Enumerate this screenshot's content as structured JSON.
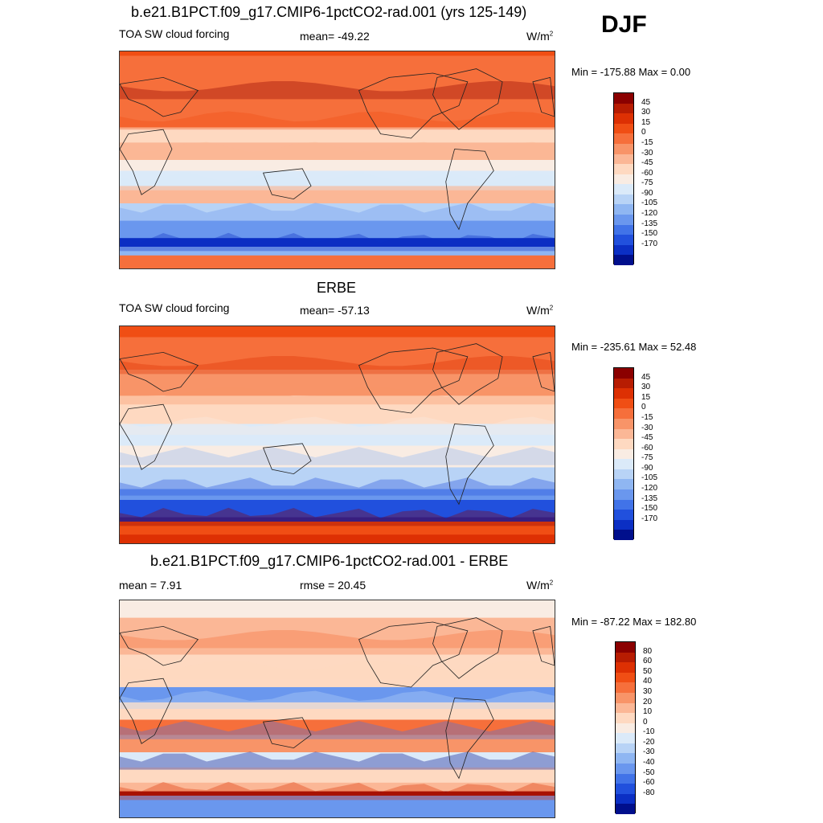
{
  "season": "DJF",
  "panels": [
    {
      "title": "b.e21.B1PCT.f09_g17.CMIP6-1pctCO2-rad.001 (yrs 125-149)",
      "left_label": "TOA SW cloud forcing",
      "center_label": "mean= -49.22",
      "units": "W/m",
      "units_sup": "2",
      "minmax": "Min = -175.88 Max =   0.00"
    },
    {
      "title": "ERBE",
      "left_label": "TOA SW cloud forcing",
      "center_label": "mean= -57.13",
      "units": "W/m",
      "units_sup": "2",
      "minmax": "Min = -235.61 Max =  52.48"
    },
    {
      "title": "b.e21.B1PCT.f09_g17.CMIP6-1pctCO2-rad.001 - ERBE",
      "left_label": "mean =   7.91",
      "center_label": "rmse =  20.45",
      "units": "W/m",
      "units_sup": "2",
      "minmax": "Min = -87.22 Max = 182.80"
    }
  ],
  "chart_data": [
    {
      "type": "heatmap",
      "title": "b.e21.B1PCT.f09_g17.CMIP6-1pctCO2-rad.001 (yrs 125-149)",
      "variable": "TOA SW cloud forcing",
      "units": "W/m2",
      "mean": -49.22,
      "min": -175.88,
      "max": 0.0,
      "colorbar_levels": [
        "45",
        "30",
        "15",
        "0",
        "-15",
        "-30",
        "-45",
        "-60",
        "-75",
        "-90",
        "-105",
        "-120",
        "-135",
        "-150",
        "-170"
      ],
      "colorbar_colors": [
        "#8b0000",
        "#b71c02",
        "#dd3003",
        "#f04e14",
        "#f66f3b",
        "#f89468",
        "#fbb796",
        "#fed9c1",
        "#f9ece3",
        "#dbeaf9",
        "#b8d3f6",
        "#8fb6f2",
        "#6a97ee",
        "#4173e8",
        "#2150dd",
        "#0b2fc4",
        "#000f8c"
      ]
    },
    {
      "type": "heatmap",
      "title": "ERBE",
      "variable": "TOA SW cloud forcing",
      "units": "W/m2",
      "mean": -57.13,
      "min": -235.61,
      "max": 52.48,
      "colorbar_levels": [
        "45",
        "30",
        "15",
        "0",
        "-15",
        "-30",
        "-45",
        "-60",
        "-75",
        "-90",
        "-105",
        "-120",
        "-135",
        "-150",
        "-170"
      ],
      "colorbar_colors": [
        "#8b0000",
        "#b71c02",
        "#dd3003",
        "#f04e14",
        "#f66f3b",
        "#f89468",
        "#fbb796",
        "#fed9c1",
        "#f9ece3",
        "#dbeaf9",
        "#b8d3f6",
        "#8fb6f2",
        "#6a97ee",
        "#4173e8",
        "#2150dd",
        "#0b2fc4",
        "#000f8c"
      ]
    },
    {
      "type": "heatmap",
      "title": "b.e21.B1PCT.f09_g17.CMIP6-1pctCO2-rad.001 - ERBE",
      "variable": "difference",
      "units": "W/m2",
      "mean": 7.91,
      "rmse": 20.45,
      "min": -87.22,
      "max": 182.8,
      "colorbar_levels": [
        "80",
        "60",
        "50",
        "40",
        "30",
        "20",
        "10",
        "0",
        "-10",
        "-20",
        "-30",
        "-40",
        "-50",
        "-60",
        "-80"
      ],
      "colorbar_colors": [
        "#8b0000",
        "#b71c02",
        "#dd3003",
        "#f04e14",
        "#f66f3b",
        "#f89468",
        "#fbb796",
        "#fed9c1",
        "#f9ece3",
        "#dbeaf9",
        "#b8d3f6",
        "#8fb6f2",
        "#6a97ee",
        "#4173e8",
        "#2150dd",
        "#0b2fc4",
        "#000f8c"
      ]
    }
  ]
}
